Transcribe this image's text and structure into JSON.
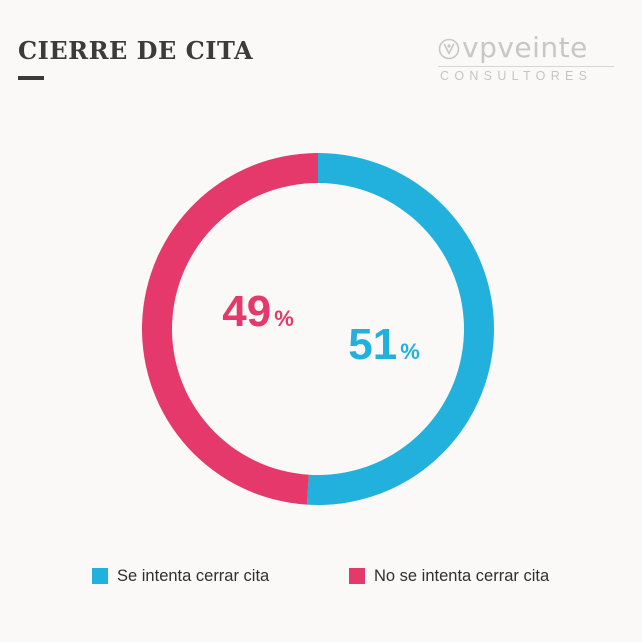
{
  "header": {
    "title": "CIERRE DE CITA"
  },
  "logo": {
    "name": "vpveinte",
    "tagline": "CONSULTORES",
    "color": "#c7c7c7"
  },
  "colors": {
    "blue": "#22b0dc",
    "pink": "#e4396a",
    "background": "#faf9f7"
  },
  "chart_data": {
    "type": "pie",
    "title": "CIERRE DE CITA",
    "donut": true,
    "categories": [
      "Se intenta cerrar cita",
      "No se intenta cerrar cita"
    ],
    "values": [
      51,
      49
    ],
    "unit": "%",
    "series_colors": [
      "#22b0dc",
      "#e4396a"
    ],
    "legend_position": "bottom"
  },
  "legend": {
    "items": [
      {
        "label": "Se intenta cerrar cita",
        "color": "#22b0dc"
      },
      {
        "label": "No se intenta cerrar cita",
        "color": "#e4396a"
      }
    ]
  }
}
